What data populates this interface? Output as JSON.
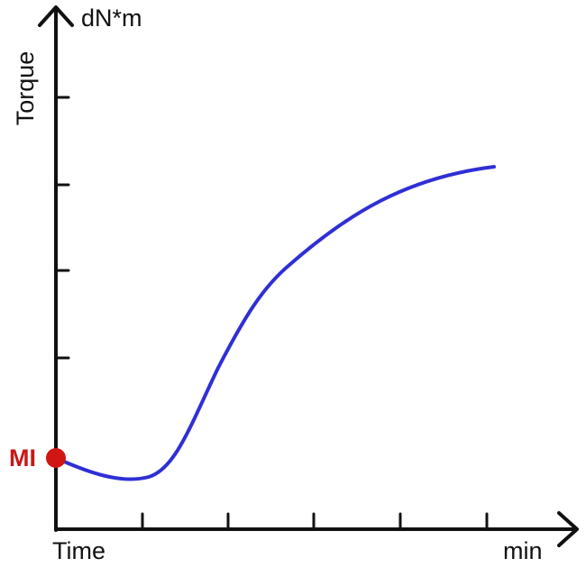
{
  "axes": {
    "y_unit": "dN*m",
    "y_label": "Torque",
    "x_label": "Time",
    "x_unit": "min"
  },
  "marker": {
    "label": "MI"
  }
}
